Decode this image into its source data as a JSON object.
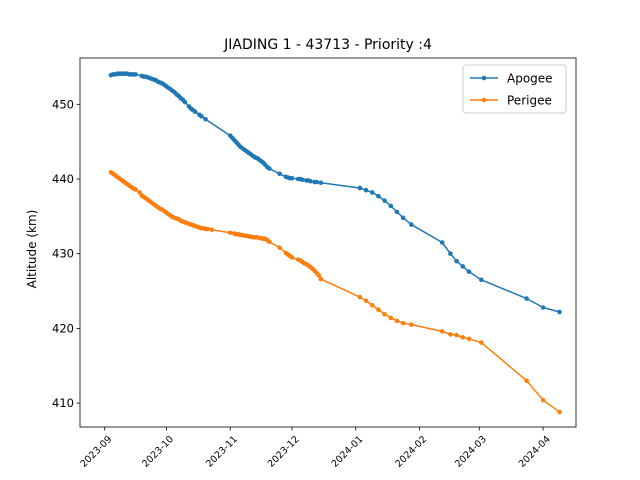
{
  "chart_data": {
    "type": "line",
    "title": "JIADING 1 - 43713 - Priority :4",
    "xlabel": "",
    "ylabel": "Altitude (km)",
    "xlim": [
      "2023-08-20",
      "2024-04-17"
    ],
    "ylim": [
      406.8,
      456.2
    ],
    "x_ticks": [
      "2023-09",
      "2023-10",
      "2023-11",
      "2023-12",
      "2024-01",
      "2024-02",
      "2024-03",
      "2024-04"
    ],
    "y_ticks": [
      410,
      420,
      430,
      440,
      450
    ],
    "grid": false,
    "legend_position": "top-right",
    "series": [
      {
        "name": "Apogee",
        "color": "#1f77b4",
        "points": [
          [
            "2023-09-04",
            453.9
          ],
          [
            "2023-09-05",
            454.0
          ],
          [
            "2023-09-06",
            454.0
          ],
          [
            "2023-09-07",
            454.1
          ],
          [
            "2023-09-08",
            454.1
          ],
          [
            "2023-09-09",
            454.1
          ],
          [
            "2023-09-10",
            454.1
          ],
          [
            "2023-09-11",
            454.1
          ],
          [
            "2023-09-12",
            454.1
          ],
          [
            "2023-09-13",
            454.0
          ],
          [
            "2023-09-14",
            454.0
          ],
          [
            "2023-09-15",
            454.0
          ],
          [
            "2023-09-16",
            454.0
          ],
          [
            "2023-09-19",
            453.8
          ],
          [
            "2023-09-20",
            453.7
          ],
          [
            "2023-09-21",
            453.7
          ],
          [
            "2023-09-22",
            453.6
          ],
          [
            "2023-09-23",
            453.5
          ],
          [
            "2023-09-24",
            453.4
          ],
          [
            "2023-09-25",
            453.3
          ],
          [
            "2023-09-26",
            453.2
          ],
          [
            "2023-09-27",
            453.0
          ],
          [
            "2023-09-28",
            452.9
          ],
          [
            "2023-09-29",
            452.8
          ],
          [
            "2023-09-30",
            452.6
          ],
          [
            "2023-10-01",
            452.4
          ],
          [
            "2023-10-02",
            452.2
          ],
          [
            "2023-10-03",
            452.0
          ],
          [
            "2023-10-04",
            451.8
          ],
          [
            "2023-10-05",
            451.6
          ],
          [
            "2023-10-06",
            451.3
          ],
          [
            "2023-10-07",
            451.1
          ],
          [
            "2023-10-08",
            450.8
          ],
          [
            "2023-10-09",
            450.6
          ],
          [
            "2023-10-10",
            450.3
          ],
          [
            "2023-10-12",
            449.7
          ],
          [
            "2023-10-13",
            449.4
          ],
          [
            "2023-10-14",
            449.2
          ],
          [
            "2023-10-15",
            449.0
          ],
          [
            "2023-10-17",
            448.6
          ],
          [
            "2023-10-18",
            448.4
          ],
          [
            "2023-10-20",
            448.0
          ],
          [
            "2023-11-01",
            445.8
          ],
          [
            "2023-11-02",
            445.5
          ],
          [
            "2023-11-03",
            445.2
          ],
          [
            "2023-11-04",
            444.9
          ],
          [
            "2023-11-05",
            444.6
          ],
          [
            "2023-11-06",
            444.3
          ],
          [
            "2023-11-07",
            444.1
          ],
          [
            "2023-11-08",
            443.9
          ],
          [
            "2023-11-09",
            443.7
          ],
          [
            "2023-11-10",
            443.5
          ],
          [
            "2023-11-11",
            443.3
          ],
          [
            "2023-11-12",
            443.1
          ],
          [
            "2023-11-13",
            442.9
          ],
          [
            "2023-11-14",
            442.8
          ],
          [
            "2023-11-15",
            442.6
          ],
          [
            "2023-11-16",
            442.4
          ],
          [
            "2023-11-17",
            442.2
          ],
          [
            "2023-11-18",
            441.9
          ],
          [
            "2023-11-19",
            441.6
          ],
          [
            "2023-11-20",
            441.4
          ],
          [
            "2023-11-25",
            440.7
          ],
          [
            "2023-11-28",
            440.3
          ],
          [
            "2023-11-29",
            440.2
          ],
          [
            "2023-11-30",
            440.1
          ],
          [
            "2023-12-01",
            440.1
          ],
          [
            "2023-12-04",
            440.0
          ],
          [
            "2023-12-05",
            440.0
          ],
          [
            "2023-12-06",
            439.9
          ],
          [
            "2023-12-08",
            439.8
          ],
          [
            "2023-12-09",
            439.8
          ],
          [
            "2023-12-10",
            439.7
          ],
          [
            "2023-12-12",
            439.6
          ],
          [
            "2023-12-13",
            439.6
          ],
          [
            "2023-12-15",
            439.5
          ],
          [
            "2024-01-03",
            438.8
          ],
          [
            "2024-01-06",
            438.5
          ],
          [
            "2024-01-09",
            438.2
          ],
          [
            "2024-01-12",
            437.7
          ],
          [
            "2024-01-15",
            437.1
          ],
          [
            "2024-01-18",
            436.4
          ],
          [
            "2024-01-21",
            435.6
          ],
          [
            "2024-01-24",
            434.8
          ],
          [
            "2024-01-28",
            433.9
          ],
          [
            "2024-02-12",
            431.5
          ],
          [
            "2024-02-16",
            430.0
          ],
          [
            "2024-02-19",
            429.0
          ],
          [
            "2024-02-22",
            428.3
          ],
          [
            "2024-02-25",
            427.6
          ],
          [
            "2024-03-02",
            426.5
          ],
          [
            "2024-03-24",
            424.0
          ],
          [
            "2024-04-01",
            422.8
          ],
          [
            "2024-04-09",
            422.2
          ]
        ]
      },
      {
        "name": "Perigee",
        "color": "#ff7f0e",
        "points": [
          [
            "2023-09-04",
            440.9
          ],
          [
            "2023-09-05",
            440.7
          ],
          [
            "2023-09-06",
            440.5
          ],
          [
            "2023-09-07",
            440.3
          ],
          [
            "2023-09-08",
            440.1
          ],
          [
            "2023-09-09",
            439.9
          ],
          [
            "2023-09-10",
            439.7
          ],
          [
            "2023-09-11",
            439.5
          ],
          [
            "2023-09-12",
            439.3
          ],
          [
            "2023-09-13",
            439.1
          ],
          [
            "2023-09-14",
            438.9
          ],
          [
            "2023-09-15",
            438.7
          ],
          [
            "2023-09-16",
            438.6
          ],
          [
            "2023-09-18",
            438.2
          ],
          [
            "2023-09-19",
            437.8
          ],
          [
            "2023-09-20",
            437.6
          ],
          [
            "2023-09-21",
            437.4
          ],
          [
            "2023-09-22",
            437.2
          ],
          [
            "2023-09-23",
            437.0
          ],
          [
            "2023-09-24",
            436.8
          ],
          [
            "2023-09-25",
            436.6
          ],
          [
            "2023-09-26",
            436.4
          ],
          [
            "2023-09-27",
            436.2
          ],
          [
            "2023-09-28",
            436.0
          ],
          [
            "2023-09-29",
            435.9
          ],
          [
            "2023-09-30",
            435.7
          ],
          [
            "2023-10-01",
            435.5
          ],
          [
            "2023-10-02",
            435.3
          ],
          [
            "2023-10-03",
            435.1
          ],
          [
            "2023-10-04",
            434.9
          ],
          [
            "2023-10-05",
            434.8
          ],
          [
            "2023-10-06",
            434.7
          ],
          [
            "2023-10-07",
            434.6
          ],
          [
            "2023-10-08",
            434.4
          ],
          [
            "2023-10-09",
            434.3
          ],
          [
            "2023-10-10",
            434.2
          ],
          [
            "2023-10-11",
            434.1
          ],
          [
            "2023-10-12",
            434.0
          ],
          [
            "2023-10-13",
            433.9
          ],
          [
            "2023-10-14",
            433.8
          ],
          [
            "2023-10-15",
            433.7
          ],
          [
            "2023-10-16",
            433.6
          ],
          [
            "2023-10-17",
            433.5
          ],
          [
            "2023-10-18",
            433.4
          ],
          [
            "2023-10-19",
            433.4
          ],
          [
            "2023-10-20",
            433.3
          ],
          [
            "2023-10-21",
            433.3
          ],
          [
            "2023-10-23",
            433.2
          ],
          [
            "2023-11-01",
            432.8
          ],
          [
            "2023-11-03",
            432.7
          ],
          [
            "2023-11-04",
            432.6
          ],
          [
            "2023-11-05",
            432.6
          ],
          [
            "2023-11-06",
            432.5
          ],
          [
            "2023-11-07",
            432.5
          ],
          [
            "2023-11-08",
            432.4
          ],
          [
            "2023-11-09",
            432.4
          ],
          [
            "2023-11-10",
            432.3
          ],
          [
            "2023-11-11",
            432.3
          ],
          [
            "2023-11-12",
            432.2
          ],
          [
            "2023-11-13",
            432.2
          ],
          [
            "2023-11-14",
            432.2
          ],
          [
            "2023-11-15",
            432.1
          ],
          [
            "2023-11-16",
            432.1
          ],
          [
            "2023-11-17",
            432.0
          ],
          [
            "2023-11-18",
            432.0
          ],
          [
            "2023-11-19",
            431.8
          ],
          [
            "2023-11-20",
            431.6
          ],
          [
            "2023-11-25",
            430.8
          ],
          [
            "2023-11-28",
            430.1
          ],
          [
            "2023-11-29",
            429.9
          ],
          [
            "2023-11-30",
            429.7
          ],
          [
            "2023-12-01",
            429.5
          ],
          [
            "2023-12-04",
            429.2
          ],
          [
            "2023-12-05",
            429.1
          ],
          [
            "2023-12-06",
            428.9
          ],
          [
            "2023-12-07",
            428.7
          ],
          [
            "2023-12-08",
            428.6
          ],
          [
            "2023-12-09",
            428.4
          ],
          [
            "2023-12-10",
            428.2
          ],
          [
            "2023-12-11",
            428.0
          ],
          [
            "2023-12-12",
            427.7
          ],
          [
            "2023-12-13",
            427.4
          ],
          [
            "2023-12-14",
            427.1
          ],
          [
            "2023-12-15",
            426.6
          ],
          [
            "2024-01-03",
            424.2
          ],
          [
            "2024-01-06",
            423.7
          ],
          [
            "2024-01-09",
            423.1
          ],
          [
            "2024-01-12",
            422.5
          ],
          [
            "2024-01-15",
            421.9
          ],
          [
            "2024-01-18",
            421.4
          ],
          [
            "2024-01-21",
            421.0
          ],
          [
            "2024-01-24",
            420.7
          ],
          [
            "2024-01-28",
            420.5
          ],
          [
            "2024-02-12",
            419.6
          ],
          [
            "2024-02-16",
            419.2
          ],
          [
            "2024-02-19",
            419.1
          ],
          [
            "2024-02-22",
            418.8
          ],
          [
            "2024-02-25",
            418.6
          ],
          [
            "2024-03-02",
            418.1
          ],
          [
            "2024-03-24",
            413.0
          ],
          [
            "2024-04-01",
            410.4
          ],
          [
            "2024-04-09",
            408.8
          ]
        ]
      }
    ]
  }
}
